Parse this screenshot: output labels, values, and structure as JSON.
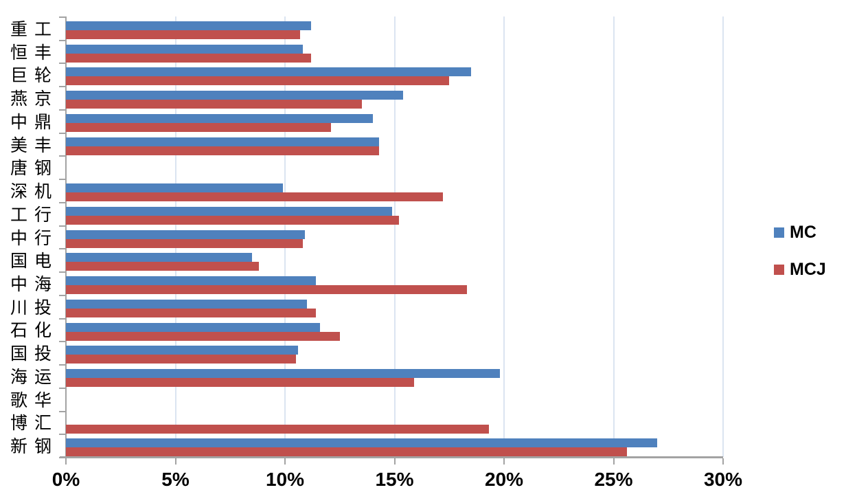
{
  "chart_data": {
    "type": "bar",
    "orientation": "horizontal",
    "title": "",
    "xlabel": "",
    "ylabel": "",
    "categories": [
      "重工",
      "恒丰",
      "巨轮",
      "燕京",
      "中鼎",
      "美丰",
      "唐钢",
      "深机",
      "工行",
      "中行",
      "国电",
      "中海",
      "川投",
      "石化",
      "国投",
      "海运",
      "歌华",
      "博汇",
      "新钢"
    ],
    "series": [
      {
        "name": "MC",
        "color": "#4f81bd",
        "values": [
          11.2,
          10.8,
          18.5,
          15.4,
          14.0,
          14.3,
          0,
          9.9,
          14.9,
          10.9,
          8.5,
          11.4,
          11.0,
          11.6,
          10.6,
          19.8,
          0,
          0,
          27.0
        ]
      },
      {
        "name": "MCJ",
        "color": "#c0504d",
        "values": [
          10.7,
          11.2,
          17.5,
          13.5,
          12.1,
          14.3,
          0,
          17.2,
          15.2,
          10.8,
          8.8,
          18.3,
          11.4,
          12.5,
          10.5,
          15.9,
          0,
          19.3,
          25.6
        ]
      }
    ],
    "x_axis": {
      "min": 0,
      "max": 30,
      "tick_step": 5,
      "tick_labels": [
        "0%",
        "5%",
        "10%",
        "15%",
        "20%",
        "25%",
        "30%"
      ]
    },
    "grid": true,
    "legend_position": "right",
    "colors": {
      "gridline": "#dbe4f1",
      "axis": "#a3a3a3",
      "text": "#000000"
    }
  }
}
